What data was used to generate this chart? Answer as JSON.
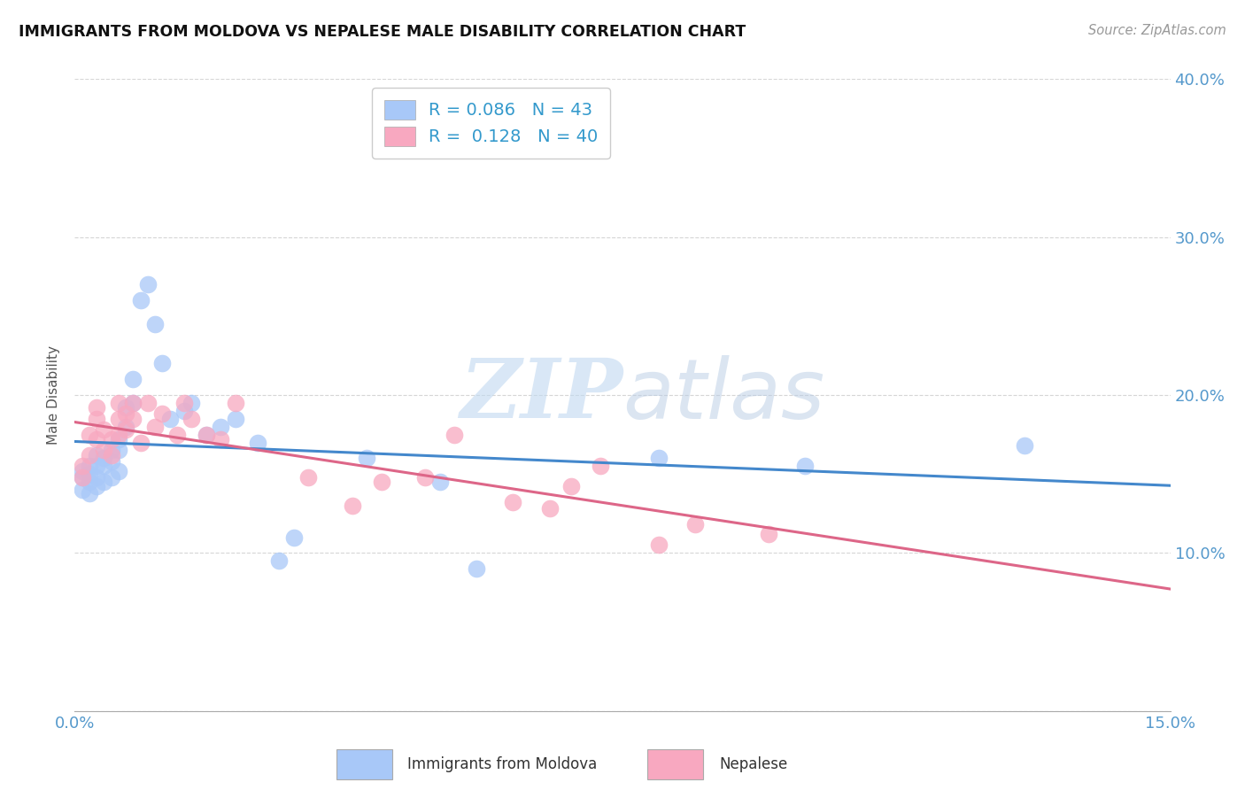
{
  "title": "IMMIGRANTS FROM MOLDOVA VS NEPALESE MALE DISABILITY CORRELATION CHART",
  "source": "Source: ZipAtlas.com",
  "ylabel_label": "Male Disability",
  "xlim": [
    0.0,
    0.15
  ],
  "ylim": [
    0.0,
    0.4
  ],
  "r_moldova": 0.086,
  "n_moldova": 43,
  "r_nepalese": 0.128,
  "n_nepalese": 40,
  "color_moldova": "#a8c8f8",
  "color_nepalese": "#f8a8c0",
  "line_color_moldova": "#4488cc",
  "line_color_nepalese": "#dd6688",
  "watermark_zip": "ZIP",
  "watermark_atlas": "atlas",
  "moldova_x": [
    0.001,
    0.001,
    0.001,
    0.002,
    0.002,
    0.002,
    0.002,
    0.003,
    0.003,
    0.003,
    0.003,
    0.004,
    0.004,
    0.004,
    0.005,
    0.005,
    0.005,
    0.006,
    0.006,
    0.006,
    0.007,
    0.007,
    0.008,
    0.008,
    0.009,
    0.01,
    0.011,
    0.012,
    0.013,
    0.015,
    0.016,
    0.018,
    0.02,
    0.022,
    0.025,
    0.028,
    0.03,
    0.04,
    0.05,
    0.055,
    0.08,
    0.1,
    0.13
  ],
  "moldova_y": [
    0.148,
    0.152,
    0.14,
    0.145,
    0.15,
    0.138,
    0.155,
    0.142,
    0.148,
    0.155,
    0.162,
    0.145,
    0.155,
    0.16,
    0.148,
    0.158,
    0.165,
    0.152,
    0.165,
    0.172,
    0.18,
    0.192,
    0.195,
    0.21,
    0.26,
    0.27,
    0.245,
    0.22,
    0.185,
    0.19,
    0.195,
    0.175,
    0.18,
    0.185,
    0.17,
    0.095,
    0.11,
    0.16,
    0.145,
    0.09,
    0.16,
    0.155,
    0.168
  ],
  "nepalese_x": [
    0.001,
    0.001,
    0.002,
    0.002,
    0.003,
    0.003,
    0.003,
    0.004,
    0.004,
    0.005,
    0.005,
    0.006,
    0.006,
    0.006,
    0.007,
    0.007,
    0.008,
    0.008,
    0.009,
    0.01,
    0.011,
    0.012,
    0.014,
    0.015,
    0.016,
    0.018,
    0.02,
    0.022,
    0.032,
    0.038,
    0.042,
    0.048,
    0.052,
    0.06,
    0.065,
    0.068,
    0.072,
    0.08,
    0.085,
    0.095
  ],
  "nepalese_y": [
    0.148,
    0.155,
    0.175,
    0.162,
    0.185,
    0.172,
    0.192,
    0.165,
    0.178,
    0.162,
    0.172,
    0.175,
    0.185,
    0.195,
    0.178,
    0.188,
    0.185,
    0.195,
    0.17,
    0.195,
    0.18,
    0.188,
    0.175,
    0.195,
    0.185,
    0.175,
    0.172,
    0.195,
    0.148,
    0.13,
    0.145,
    0.148,
    0.175,
    0.132,
    0.128,
    0.142,
    0.155,
    0.105,
    0.118,
    0.112
  ]
}
